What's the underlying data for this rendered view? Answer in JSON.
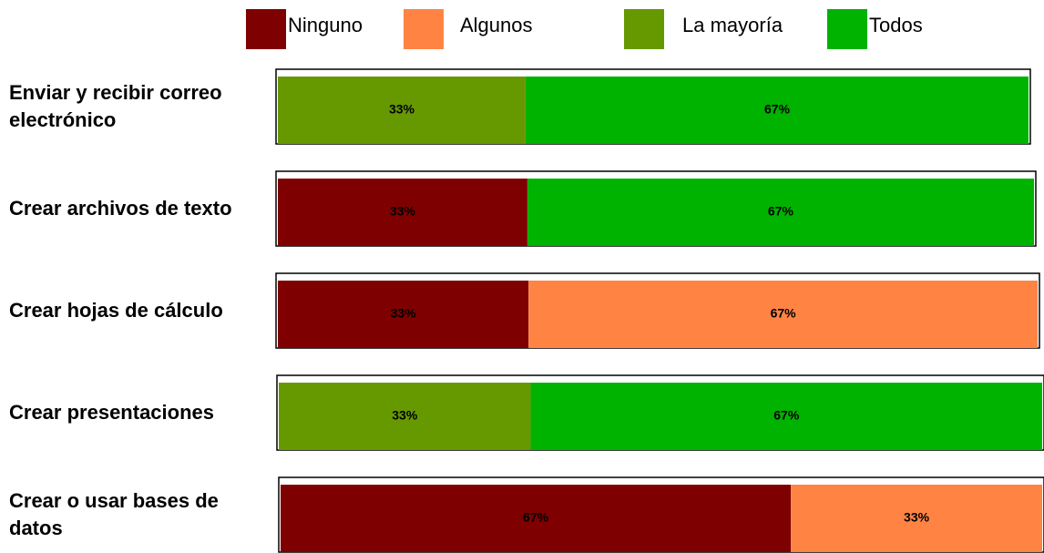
{
  "chart_data": {
    "type": "stacked_barh_percent",
    "categories": [
      "Enviar y recibir correo electrónico",
      "Crear archivos de texto",
      "Crear hojas de cálculo",
      "Crear presentaciones",
      "Crear o usar bases de datos"
    ],
    "series": [
      {
        "name": "Ninguno",
        "color": "#7f0000",
        "values": [
          null,
          33,
          33,
          null,
          67
        ],
        "value_labels": [
          null,
          "33%",
          "33%",
          null,
          "67%"
        ]
      },
      {
        "name": "Algunos",
        "color": "#ff8444",
        "values": [
          null,
          null,
          67,
          null,
          33
        ],
        "value_labels": [
          null,
          null,
          "67%",
          null,
          "33%"
        ]
      },
      {
        "name": "La mayoría",
        "color": "#669900",
        "values": [
          33,
          null,
          null,
          33,
          null
        ],
        "value_labels": [
          "33%",
          null,
          null,
          "33%",
          null
        ]
      },
      {
        "name": "Todos",
        "color": "#00b300",
        "values": [
          67,
          67,
          null,
          67,
          null
        ],
        "value_labels": [
          "67%",
          "67%",
          null,
          "67%",
          null
        ]
      }
    ],
    "legend": "top"
  }
}
